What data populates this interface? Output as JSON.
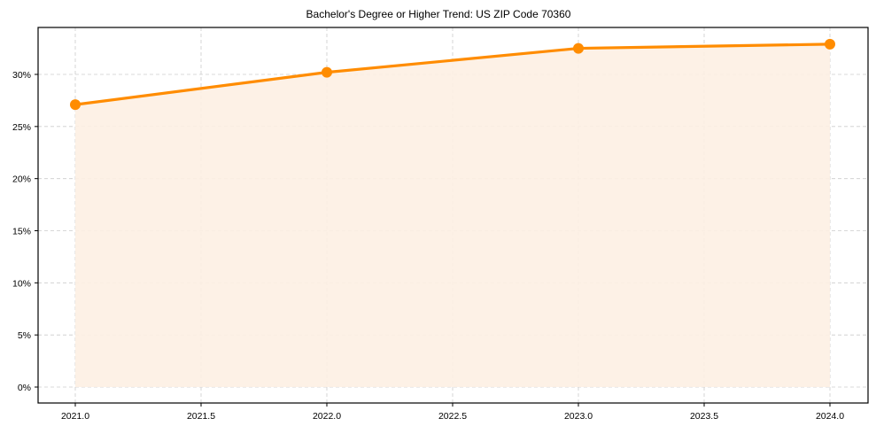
{
  "chart_data": {
    "type": "line",
    "title": "Bachelor's Degree or Higher Trend: US ZIP Code 70360",
    "xlabel": "",
    "ylabel": "",
    "x": [
      2021,
      2022,
      2023,
      2024
    ],
    "series": [
      {
        "name": "Bachelor's Degree or Higher",
        "values": [
          27.1,
          30.2,
          32.5,
          32.9
        ],
        "color": "#ff8c00",
        "fill_color": "#fdf0e3",
        "marker": "circle"
      }
    ],
    "xticks": [
      "2021.0",
      "2021.5",
      "2022.0",
      "2022.5",
      "2023.0",
      "2023.5",
      "2024.0"
    ],
    "xtick_values": [
      2021.0,
      2021.5,
      2022.0,
      2022.5,
      2023.0,
      2023.5,
      2024.0
    ],
    "yticks": [
      "0%",
      "5%",
      "10%",
      "15%",
      "20%",
      "25%",
      "30%"
    ],
    "ytick_values": [
      0,
      5,
      10,
      15,
      20,
      25,
      30
    ],
    "xlim": [
      2020.85,
      2024.15
    ],
    "ylim": [
      -1.5,
      34.5
    ],
    "grid": true,
    "legend": null,
    "area_fill": true
  }
}
